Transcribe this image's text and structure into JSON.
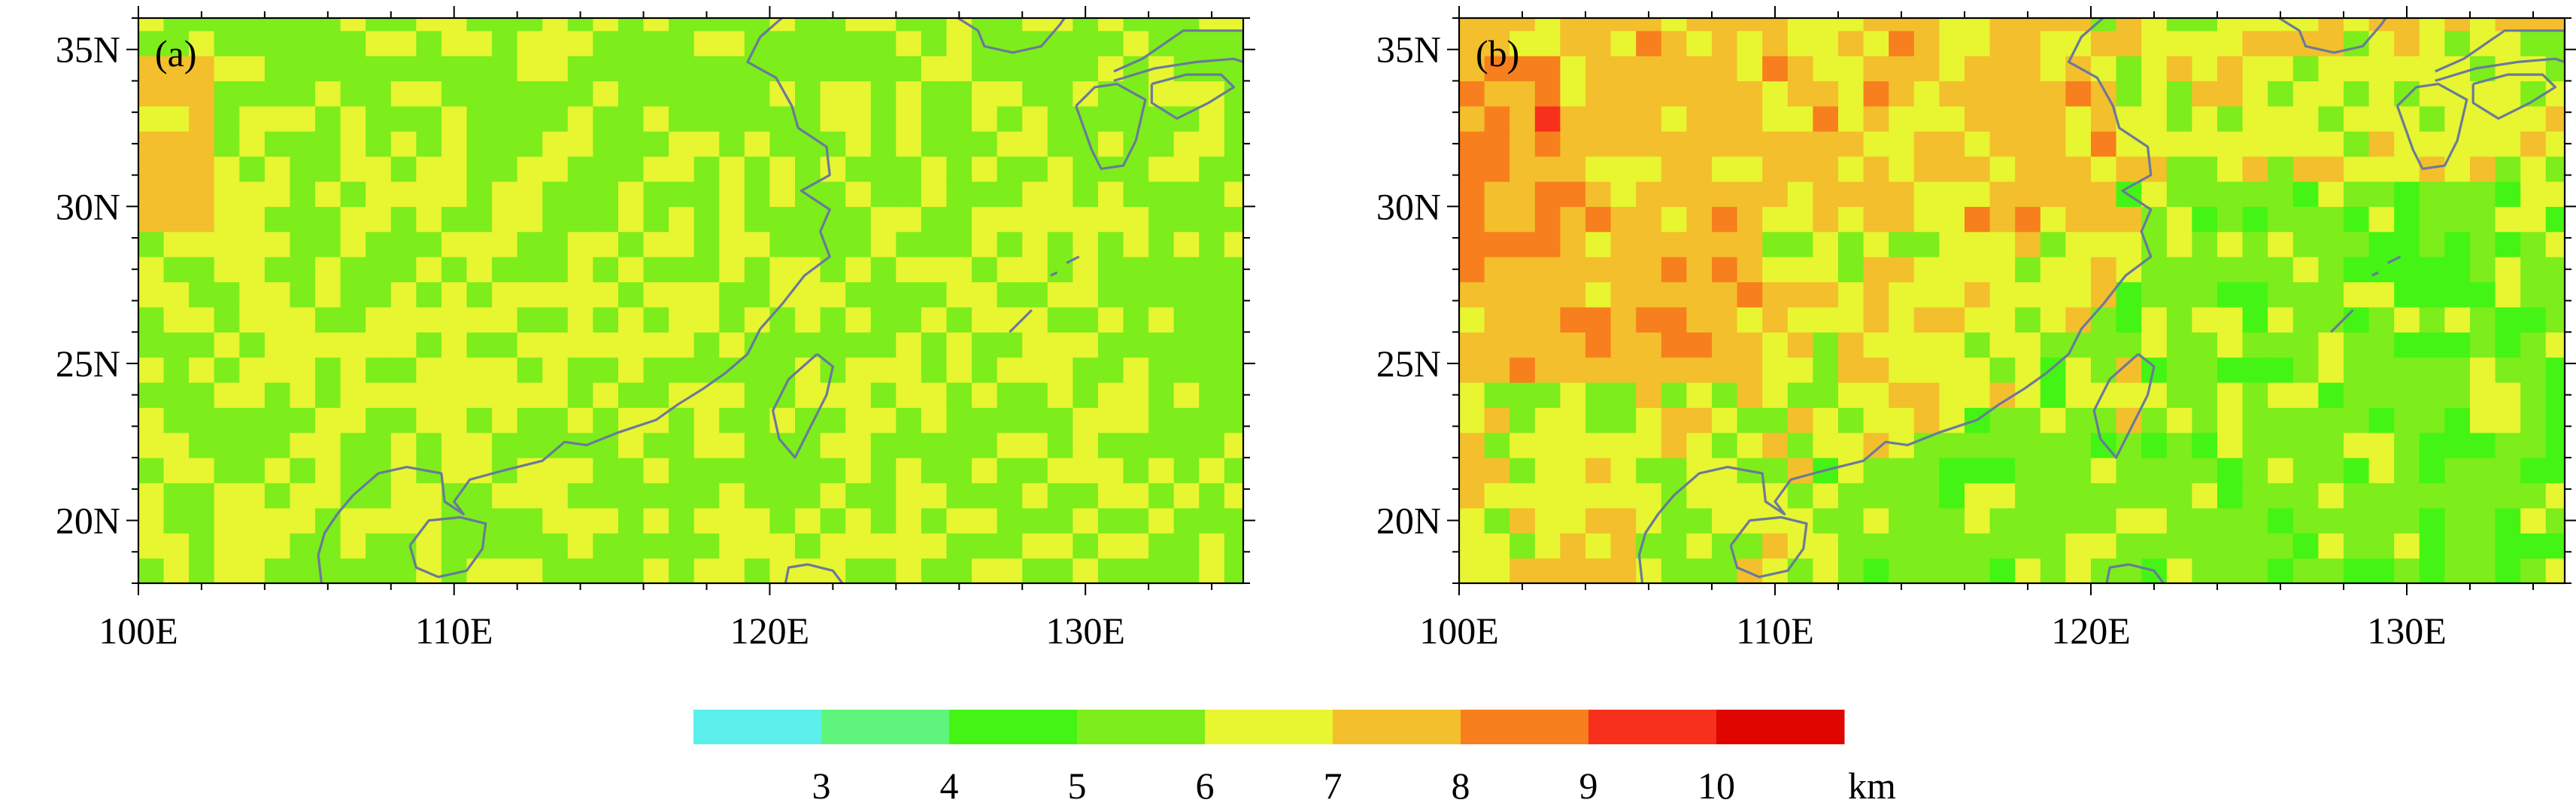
{
  "figure": {
    "type": "gridded-map-pair",
    "grid_step_deg": 0.8,
    "lon_range": [
      100,
      135
    ],
    "lat_range": [
      18,
      36
    ],
    "coastline_color": "#6a7a9a",
    "frame_color": "#000000",
    "axes": {
      "x_ticks": [
        "100E",
        "110E",
        "120E",
        "130E"
      ],
      "x_tick_values": [
        100,
        110,
        120,
        130
      ],
      "y_ticks": [
        "20N",
        "25N",
        "30N",
        "35N"
      ],
      "y_tick_values": [
        20,
        25,
        30,
        35
      ]
    },
    "panels": [
      {
        "label": "(a)",
        "description_values": "field mostly 6-7 km: light green (6) over most ocean and north, yellow (6-7) over south/central China, a small 7-8 km patch near 100-102E, 29-34N",
        "dominant_class": 4
      },
      {
        "label": "(b)",
        "description_values": "field mostly 7-8 km over land north and west, yellow over southeast China, green (5-6 km) over ocean east of 122E, 8-9 km near 100-103E, 28-34N",
        "dominant_class": 5
      }
    ]
  },
  "colorbar": {
    "colors": [
      "#5cf0ec",
      "#5ff57c",
      "#44f414",
      "#7ded1c",
      "#e8f531",
      "#f3bf2c",
      "#f77f1e",
      "#f7301b",
      "#df0600"
    ],
    "tick_labels": [
      "3",
      "4",
      "5",
      "6",
      "7",
      "8",
      "9",
      "10"
    ],
    "unit": "km"
  }
}
